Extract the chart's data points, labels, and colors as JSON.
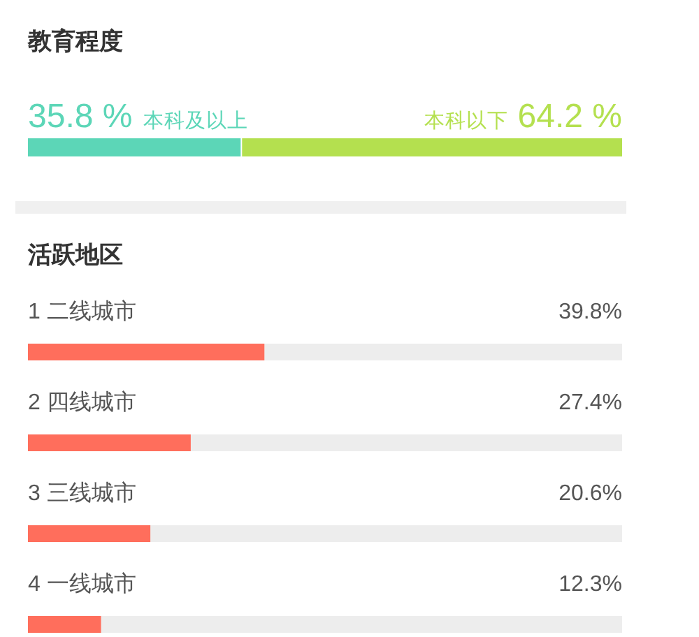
{
  "chart_data": [
    {
      "type": "bar",
      "title": "教育程度",
      "orientation": "horizontal",
      "stacked": true,
      "categories": [
        null
      ],
      "xlim": [
        0,
        100
      ],
      "tick_labels": false,
      "series": [
        {
          "name": "本科及以上",
          "color": "#5cd6b7",
          "values": [
            35.8
          ],
          "value_labels": [
            "35.8 %"
          ]
        },
        {
          "name": "本科以下",
          "color": "#b4e04f",
          "values": [
            64.2
          ],
          "value_labels": [
            "64.2 %"
          ]
        }
      ]
    },
    {
      "type": "bar",
      "title": "活跃地区",
      "orientation": "horizontal",
      "categories": [
        "1 二线城市",
        "2 四线城市",
        "3 三线城市",
        "4 一线城市"
      ],
      "values": [
        39.8,
        27.4,
        20.6,
        12.3
      ],
      "value_labels": [
        "39.8%",
        "27.4%",
        "20.6%",
        "12.3%"
      ],
      "color": "#ff6e5c",
      "xlim": [
        0,
        100
      ],
      "tick_labels": "y"
    }
  ]
}
